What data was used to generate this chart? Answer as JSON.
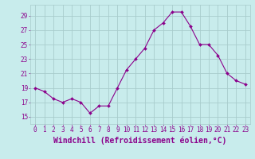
{
  "x": [
    0,
    1,
    2,
    3,
    4,
    5,
    6,
    7,
    8,
    9,
    10,
    11,
    12,
    13,
    14,
    15,
    16,
    17,
    18,
    19,
    20,
    21,
    22,
    23
  ],
  "y": [
    19,
    18.5,
    17.5,
    17,
    17.5,
    17,
    15.5,
    16.5,
    16.5,
    19,
    21.5,
    23,
    24.5,
    27,
    28,
    29.5,
    29.5,
    27.5,
    25,
    25,
    23.5,
    21,
    20,
    19.5
  ],
  "line_color": "#8B008B",
  "marker_color": "#8B008B",
  "bg_color": "#c8ecec",
  "grid_color": "#a8cccc",
  "xlabel": "Windchill (Refroidissement éolien,°C)",
  "xlabel_color": "#8B008B",
  "ylim": [
    14,
    30.5
  ],
  "xlim": [
    -0.5,
    23.5
  ],
  "yticks": [
    15,
    17,
    19,
    21,
    23,
    25,
    27,
    29
  ],
  "xticks": [
    0,
    1,
    2,
    3,
    4,
    5,
    6,
    7,
    8,
    9,
    10,
    11,
    12,
    13,
    14,
    15,
    16,
    17,
    18,
    19,
    20,
    21,
    22,
    23
  ],
  "tick_color": "#8B008B",
  "tick_fontsize": 5.5,
  "xlabel_fontsize": 7.0
}
